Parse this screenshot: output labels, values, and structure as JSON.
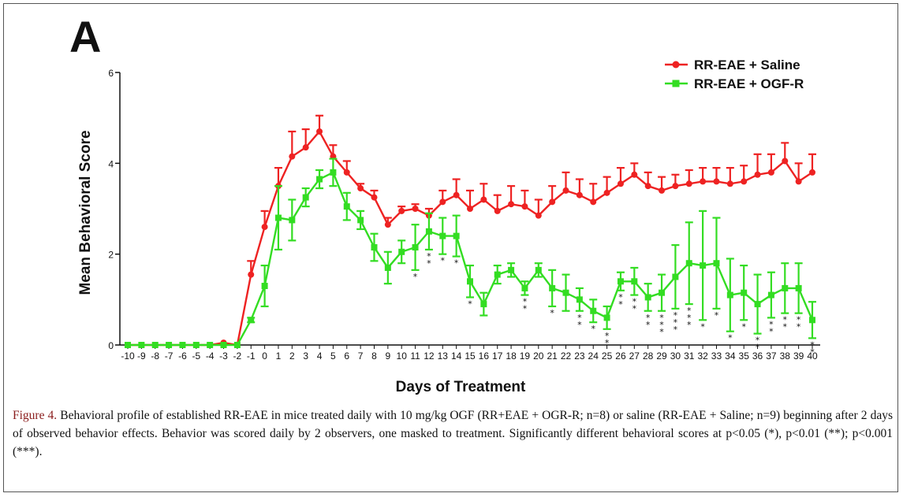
{
  "panel_label": "A",
  "caption": {
    "label": "Figure 4.",
    "text": "Behavioral profile of established RR-EAE in mice treated daily with 10 mg/kg OGF (RR+EAE + OGR-R; n=8) or saline (RR-EAE + Saline; n=9) beginning after 2 days of observed behavior effects. Behavior was scored daily by 2 observers, one masked to treatment. Significantly different behavioral scores at p<0.05 (*), p<0.01 (**); p<0.001 (***)."
  },
  "chart_data": {
    "type": "line",
    "title": "",
    "xlabel": "Days of Treatment",
    "ylabel": "Mean Behavioral Score",
    "ylim": [
      0,
      6
    ],
    "yticks": [
      0,
      2,
      4,
      6
    ],
    "x": [
      -10,
      -9,
      -8,
      -7,
      -6,
      -5,
      -4,
      -3,
      -2,
      -1,
      0,
      1,
      2,
      3,
      4,
      5,
      6,
      7,
      8,
      9,
      10,
      11,
      12,
      13,
      14,
      15,
      16,
      17,
      18,
      19,
      20,
      21,
      22,
      23,
      24,
      25,
      26,
      27,
      28,
      29,
      30,
      31,
      32,
      33,
      34,
      35,
      36,
      37,
      38,
      39,
      40
    ],
    "legend_position": "top-right",
    "grid": false,
    "series": [
      {
        "name": "RR-EAE + Saline",
        "color": "#ee2222",
        "marker": "circle",
        "values": [
          0,
          0,
          0,
          0,
          0,
          0,
          0,
          0.05,
          0,
          1.55,
          2.6,
          3.5,
          4.15,
          4.35,
          4.7,
          4.15,
          3.8,
          3.45,
          3.25,
          2.65,
          2.95,
          3.0,
          2.85,
          3.15,
          3.3,
          3.0,
          3.2,
          2.95,
          3.1,
          3.05,
          2.85,
          3.15,
          3.4,
          3.3,
          3.15,
          3.35,
          3.55,
          3.75,
          3.5,
          3.4,
          3.5,
          3.55,
          3.6,
          3.6,
          3.55,
          3.6,
          3.75,
          3.8,
          4.05,
          3.6,
          3.8
        ],
        "errors": [
          0,
          0,
          0,
          0,
          0,
          0,
          0,
          0,
          0,
          0.3,
          0.35,
          0.4,
          0.55,
          0.4,
          0.35,
          0.25,
          0.25,
          0.1,
          0.15,
          0.15,
          0.1,
          0.1,
          0.15,
          0.25,
          0.35,
          0.4,
          0.35,
          0.35,
          0.4,
          0.35,
          0.35,
          0.35,
          0.4,
          0.35,
          0.4,
          0.35,
          0.35,
          0.25,
          0.3,
          0.3,
          0.25,
          0.3,
          0.3,
          0.3,
          0.35,
          0.35,
          0.45,
          0.4,
          0.4,
          0.4,
          0.4
        ]
      },
      {
        "name": "RR-EAE + OGF-R",
        "color": "#33dd22",
        "marker": "square",
        "values": [
          0,
          0,
          0,
          0,
          0,
          0,
          0,
          0,
          0,
          0.55,
          1.3,
          2.8,
          2.75,
          3.25,
          3.65,
          3.8,
          3.05,
          2.75,
          2.15,
          1.7,
          2.05,
          2.15,
          2.5,
          2.4,
          2.4,
          1.4,
          0.9,
          1.55,
          1.65,
          1.25,
          1.65,
          1.25,
          1.15,
          1.0,
          0.75,
          0.6,
          1.4,
          1.4,
          1.05,
          1.15,
          1.5,
          1.8,
          1.75,
          1.8,
          1.1,
          1.15,
          0.9,
          1.1,
          1.25,
          1.25,
          0.55
        ],
        "errors": [
          0,
          0,
          0,
          0,
          0,
          0,
          0,
          0,
          0,
          0.05,
          0.45,
          0.7,
          0.45,
          0.2,
          0.2,
          0.3,
          0.3,
          0.2,
          0.3,
          0.35,
          0.25,
          0.5,
          0.4,
          0.4,
          0.45,
          0.35,
          0.25,
          0.2,
          0.15,
          0.15,
          0.15,
          0.4,
          0.4,
          0.25,
          0.25,
          0.25,
          0.2,
          0.3,
          0.3,
          0.4,
          0.7,
          0.9,
          1.2,
          1.0,
          0.8,
          0.6,
          0.65,
          0.5,
          0.55,
          0.55,
          0.4
        ]
      }
    ],
    "significance": [
      {
        "x": 11,
        "stars": "*"
      },
      {
        "x": 12,
        "stars": "**"
      },
      {
        "x": 13,
        "stars": "*"
      },
      {
        "x": 14,
        "stars": "*"
      },
      {
        "x": 15,
        "stars": "*"
      },
      {
        "x": 19,
        "stars": "**"
      },
      {
        "x": 21,
        "stars": "*"
      },
      {
        "x": 23,
        "stars": "**"
      },
      {
        "x": 24,
        "stars": "*"
      },
      {
        "x": 25,
        "stars": "**"
      },
      {
        "x": 26,
        "stars": "**"
      },
      {
        "x": 27,
        "stars": "**"
      },
      {
        "x": 28,
        "stars": "**"
      },
      {
        "x": 29,
        "stars": "***"
      },
      {
        "x": 30,
        "stars": "***"
      },
      {
        "x": 31,
        "stars": "***"
      },
      {
        "x": 32,
        "stars": "*"
      },
      {
        "x": 33,
        "stars": "*"
      },
      {
        "x": 34,
        "stars": "*"
      },
      {
        "x": 35,
        "stars": "*"
      },
      {
        "x": 36,
        "stars": "**"
      },
      {
        "x": 37,
        "stars": "**"
      },
      {
        "x": 38,
        "stars": "**"
      },
      {
        "x": 39,
        "stars": "**"
      },
      {
        "x": 40,
        "stars": "**"
      }
    ]
  }
}
